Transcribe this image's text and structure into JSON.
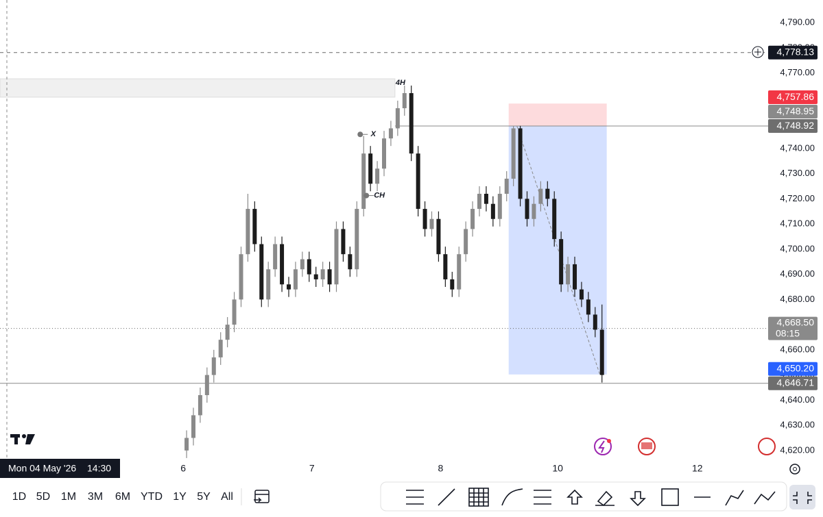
{
  "chart_data": {
    "type": "candlestick",
    "up_color": "#8a8a8a",
    "down_color": "#1c1c1c",
    "xlim": [
      -27.4,
      85.4
    ],
    "xticks": [
      {
        "value": -0.5,
        "label": "6"
      },
      {
        "value": 18.4,
        "label": "7"
      },
      {
        "value": 37.3,
        "label": "8"
      },
      {
        "value": 54.5,
        "label": "10"
      },
      {
        "value": 75,
        "label": "12"
      }
    ],
    "ylim": [
      4616.7,
      4799
    ],
    "yticks": [
      {
        "value": 4790,
        "label": "4,790.00"
      },
      {
        "value": 4780,
        "label": "4,780.00"
      },
      {
        "value": 4770,
        "label": "4,770.00"
      },
      {
        "value": 4760,
        "label": "4,760.00"
      },
      {
        "value": 4750,
        "label": "4,750.00"
      },
      {
        "value": 4740,
        "label": "4,740.00"
      },
      {
        "value": 4730,
        "label": "4,730.00"
      },
      {
        "value": 4720,
        "label": "4,720.00"
      },
      {
        "value": 4710,
        "label": "4,710.00"
      },
      {
        "value": 4700,
        "label": "4,700.00"
      },
      {
        "value": 4690,
        "label": "4,690.00"
      },
      {
        "value": 4680,
        "label": "4,680.00"
      },
      {
        "value": 4670,
        "label": "4,670.00"
      },
      {
        "value": 4660,
        "label": "4,660.00"
      },
      {
        "value": 4650,
        "label": "4,650.00"
      },
      {
        "value": 4640,
        "label": "4,640.00"
      },
      {
        "value": 4630,
        "label": "4,630.00"
      },
      {
        "value": 4620,
        "label": "4,620.00"
      }
    ],
    "open": [
      4620,
      4625,
      4634,
      4642,
      4650,
      4657,
      4664,
      4670,
      4680,
      4698,
      4716,
      4702,
      4680,
      4692,
      4702,
      4686,
      4684,
      4692,
      4696,
      4690,
      4688,
      4692,
      4686,
      4708,
      4698,
      4692,
      4716,
      4738,
      4726,
      4732,
      4744,
      4748,
      4756,
      4762,
      4738,
      4716,
      4708,
      4712,
      4698,
      4688,
      4684,
      4698,
      4708,
      4716,
      4722,
      4718,
      4712,
      4722,
      4728,
      4748,
      4720,
      4712,
      4718,
      4724,
      4720,
      4704,
      4686,
      4694,
      4684,
      4680,
      4674,
      4668
    ],
    "high": [
      4628,
      4637,
      4645,
      4653,
      4660,
      4667,
      4673,
      4683,
      4701,
      4722,
      4719,
      4705,
      4695,
      4705,
      4705,
      4689,
      4695,
      4699,
      4699,
      4693,
      4695,
      4695,
      4711,
      4711,
      4701,
      4719,
      4745,
      4741,
      4735,
      4747,
      4751,
      4759,
      4765,
      4765,
      4741,
      4719,
      4715,
      4715,
      4701,
      4691,
      4701,
      4711,
      4719,
      4725,
      4725,
      4721,
      4725,
      4731,
      4749,
      4749,
      4723,
      4721,
      4727,
      4727,
      4723,
      4707,
      4697,
      4697,
      4687,
      4683,
      4677,
      4678
    ],
    "low": [
      4617,
      4622,
      4631,
      4639,
      4647,
      4654,
      4661,
      4667,
      4677,
      4695,
      4699,
      4677,
      4677,
      4689,
      4683,
      4681,
      4681,
      4689,
      4687,
      4685,
      4685,
      4683,
      4683,
      4695,
      4689,
      4689,
      4713,
      4723,
      4723,
      4729,
      4741,
      4745,
      4753,
      4735,
      4713,
      4705,
      4705,
      4695,
      4685,
      4681,
      4681,
      4695,
      4705,
      4713,
      4715,
      4709,
      4709,
      4719,
      4725,
      4717,
      4709,
      4709,
      4715,
      4717,
      4701,
      4683,
      4683,
      4681,
      4677,
      4671,
      4665,
      4647
    ],
    "close": [
      4625,
      4634,
      4642,
      4650,
      4657,
      4664,
      4670,
      4680,
      4698,
      4716,
      4702,
      4680,
      4692,
      4702,
      4686,
      4684,
      4692,
      4696,
      4690,
      4688,
      4692,
      4686,
      4708,
      4698,
      4692,
      4716,
      4738,
      4726,
      4732,
      4744,
      4748,
      4756,
      4762,
      4738,
      4716,
      4708,
      4712,
      4698,
      4688,
      4684,
      4698,
      4708,
      4716,
      4722,
      4718,
      4712,
      4722,
      4728,
      4748,
      4720,
      4712,
      4718,
      4724,
      4720,
      4704,
      4686,
      4694,
      4684,
      4680,
      4674,
      4668,
      4650
    ],
    "zone": {
      "top": 4767.7,
      "bottom": 4760.4,
      "x_end": 30.6
    },
    "position": {
      "stop": 4757.86,
      "entry": 4748.95,
      "target": 4650.2,
      "x": [
        47.3,
        61.7
      ]
    },
    "annotations": [
      {
        "text": "4H",
        "x": 29.6,
        "y": 4766
      },
      {
        "text": "X",
        "x": 25.6,
        "y": 4745.6
      },
      {
        "text": "CH",
        "x": 26.5,
        "y": 4721.3
      }
    ],
    "price_labels": [
      {
        "value": 4778.13,
        "label": "4,778.13",
        "bg": "#131722",
        "line": "dashed"
      },
      {
        "value": 4757.86,
        "label": "4,757.86",
        "bg": "#f23645"
      },
      {
        "value": 4748.95,
        "label": "4,748.95",
        "bg": "#8a8a8a"
      },
      {
        "value": 4748.92,
        "label": "4,748.92",
        "bg": "#6e6e6e",
        "line": "solid"
      },
      {
        "value": 4668.5,
        "label": "4,668.50",
        "sub": "08:15",
        "bg": "#8a8a8a",
        "line": "dotted"
      },
      {
        "value": 4650.2,
        "label": "4,650.20",
        "bg": "#2962ff"
      },
      {
        "value": 4646.71,
        "label": "4,646.71",
        "bg": "#6e6e6e",
        "line": "solid"
      }
    ]
  },
  "crosshair": {
    "date": "Mon 04 May '26",
    "time": "14:30"
  },
  "timeframes": [
    "1D",
    "5D",
    "1M",
    "3M",
    "6M",
    "YTD",
    "1Y",
    "5Y",
    "All"
  ]
}
